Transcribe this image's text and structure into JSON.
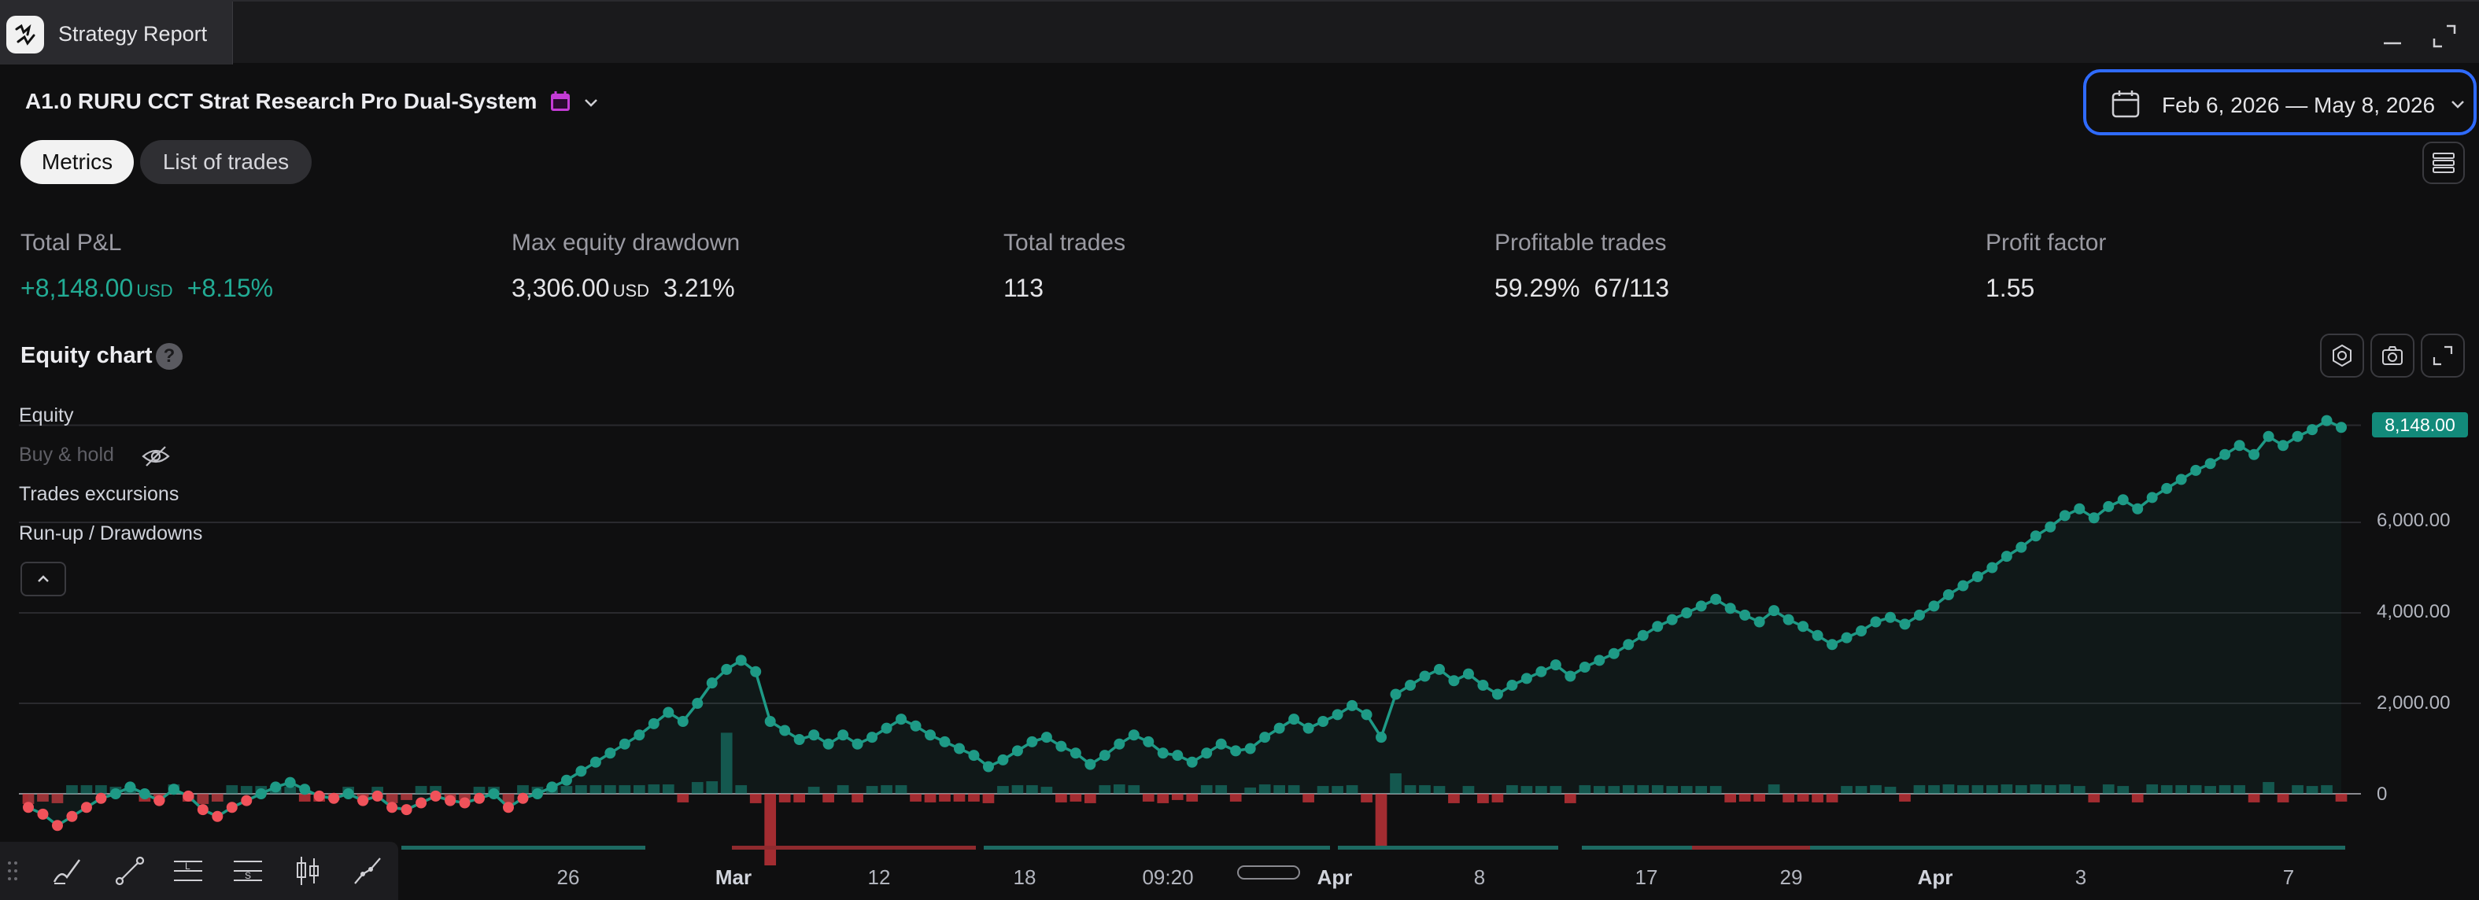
{
  "window": {
    "tab_title": "Strategy Report",
    "logo_icon": "tradingview-logo-icon"
  },
  "header": {
    "strategy_name": "A1.0 RURU CCT Strat Research Pro Dual-System",
    "date_range": "Feb 6, 2026 — May 8, 2026"
  },
  "tabs": [
    {
      "label": "Metrics",
      "active": true
    },
    {
      "label": "List of trades",
      "active": false
    }
  ],
  "metrics": [
    {
      "label": "Total P&L",
      "value": "+8,148.00",
      "unit": "USD",
      "extra": "+8.15%"
    },
    {
      "label": "Max equity drawdown",
      "value": "3,306.00",
      "unit": "USD",
      "extra": "3.21%"
    },
    {
      "label": "Total trades",
      "value": "113"
    },
    {
      "label": "Profitable trades",
      "value": "59.29%",
      "extra": "67/113"
    },
    {
      "label": "Profit factor",
      "value": "1.55"
    }
  ],
  "equity_chart": {
    "title": "Equity chart",
    "help": "?",
    "legend": [
      "Equity",
      "Buy & hold",
      "Trades excursions",
      "Run-up / Drawdowns"
    ],
    "current_equity": "8,148.00",
    "y_ticks": [
      "6,000.00",
      "4,000.00",
      "2,000.00",
      "0"
    ],
    "x_ticks": [
      "26",
      "Mar",
      "12",
      "18",
      "09:20",
      "Apr",
      "8",
      "17",
      "29",
      "Apr",
      "3",
      "7"
    ]
  },
  "chart_data": {
    "type": "line",
    "ylim": [
      -1000,
      8500
    ],
    "series": [
      {
        "name": "Equity",
        "values": [
          -300,
          -450,
          -700,
          -500,
          -300,
          -100,
          0,
          150,
          0,
          -150,
          100,
          -50,
          -350,
          -500,
          -300,
          -150,
          0,
          150,
          250,
          100,
          -50,
          -100,
          0,
          -150,
          -50,
          -300,
          -350,
          -200,
          -50,
          -150,
          -200,
          -100,
          0,
          -300,
          -100,
          0,
          150,
          300,
          500,
          700,
          900,
          1100,
          1300,
          1550,
          1800,
          1600,
          2000,
          2450,
          2750,
          2950,
          2700,
          1600,
          1400,
          1200,
          1300,
          1100,
          1300,
          1100,
          1250,
          1450,
          1650,
          1500,
          1300,
          1150,
          1000,
          850,
          600,
          750,
          950,
          1150,
          1250,
          1050,
          900,
          650,
          850,
          1100,
          1300,
          1150,
          900,
          850,
          700,
          900,
          1100,
          950,
          1000,
          1250,
          1450,
          1650,
          1450,
          1600,
          1750,
          1950,
          1750,
          1250,
          2200,
          2400,
          2600,
          2750,
          2500,
          2650,
          2400,
          2200,
          2400,
          2550,
          2700,
          2850,
          2600,
          2800,
          2950,
          3100,
          3300,
          3500,
          3700,
          3850,
          4000,
          4150,
          4300,
          4100,
          3950,
          3800,
          4050,
          3850,
          3700,
          3500,
          3300,
          3450,
          3600,
          3800,
          3900,
          3750,
          3950,
          4150,
          4400,
          4600,
          4800,
          5000,
          5250,
          5450,
          5700,
          5900,
          6150,
          6300,
          6100,
          6350,
          6500,
          6300,
          6550,
          6750,
          6950,
          7150,
          7300,
          7500,
          7700,
          7500,
          7900,
          7700,
          7900,
          8050,
          8250,
          8100
        ],
        "color": "#1e9a86"
      }
    ]
  }
}
